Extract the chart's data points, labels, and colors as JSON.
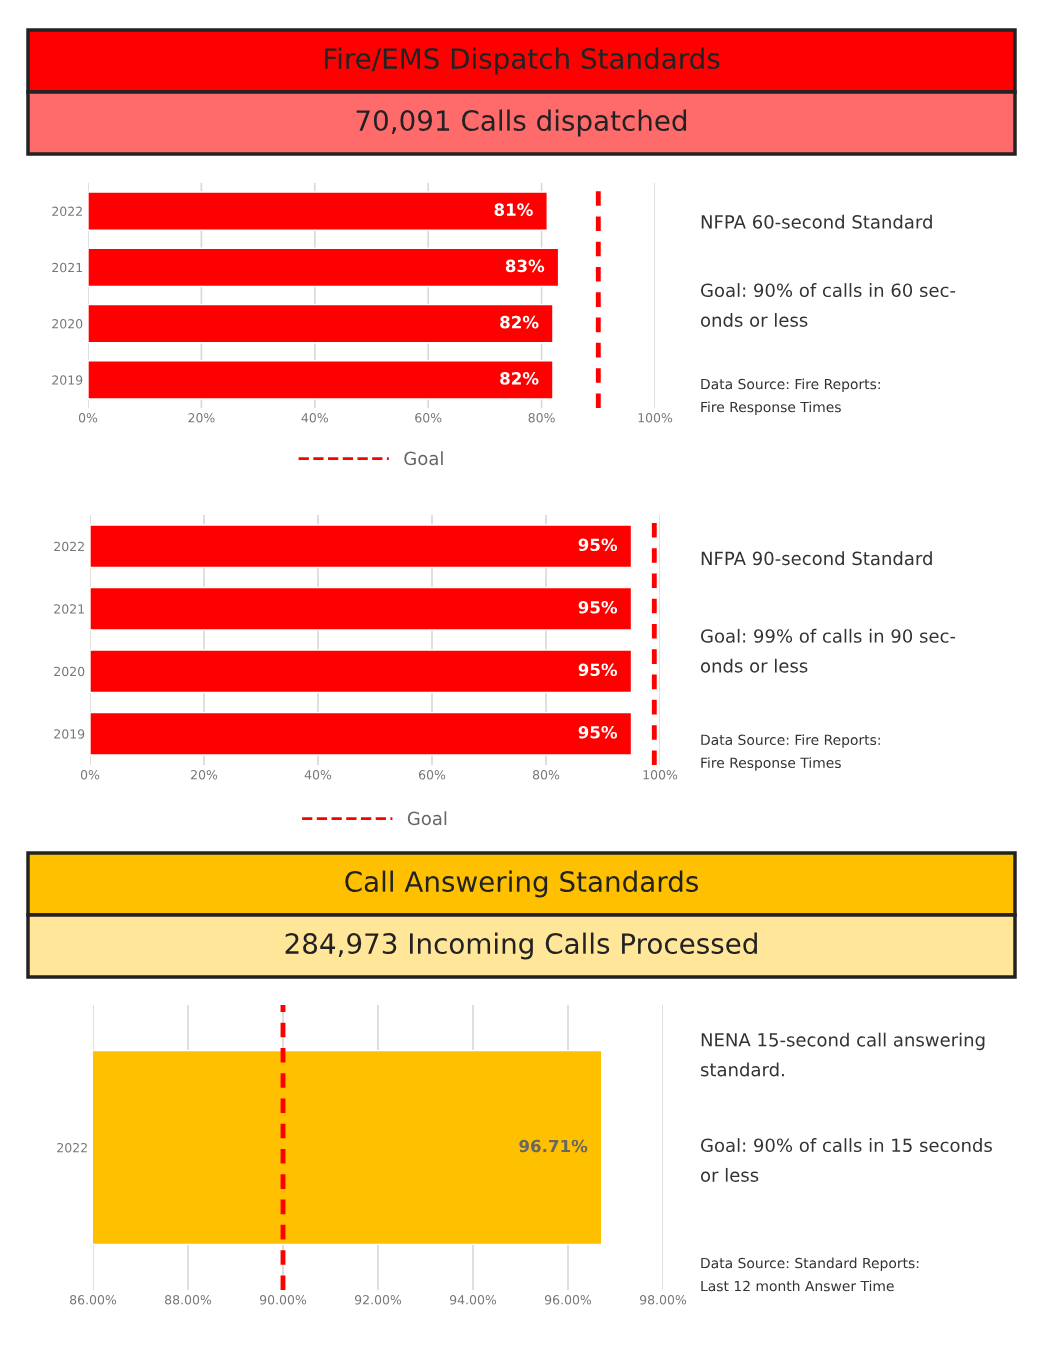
{
  "chart_data": [
    {
      "type": "bar",
      "orientation": "horizontal",
      "title": "Fire/EMS Dispatch Standards",
      "subtitle": "70,091 Calls dispatched",
      "categories": [
        "2022",
        "2021",
        "2020",
        "2019"
      ],
      "values": [
        81,
        83,
        82,
        82
      ],
      "value_labels": [
        "81%",
        "83%",
        "82%",
        "82%"
      ],
      "color": "#ff0000",
      "xlim": [
        0,
        100
      ],
      "xticks": [
        {
          "value": 0,
          "label": "0%"
        },
        {
          "value": 20,
          "label": "20%"
        },
        {
          "value": 40,
          "label": "40%"
        },
        {
          "value": 60,
          "label": "60%"
        },
        {
          "value": 80,
          "label": "80%"
        },
        {
          "value": 100,
          "label": "100%"
        }
      ],
      "ref_lines": [
        {
          "axis": "x",
          "value": 90,
          "label": "Goal",
          "color": "#ff0000",
          "line_style": "dashed"
        }
      ],
      "grid": "x",
      "legend": "bottom",
      "annotations": [
        "NFPA 60-second Standard",
        "Goal: 90% of calls in 60 sec-\nonds or less",
        "Data Source: Fire Reports:\nFire Response Times"
      ]
    },
    {
      "type": "bar",
      "orientation": "horizontal",
      "categories": [
        "2022",
        "2021",
        "2020",
        "2019"
      ],
      "values": [
        95,
        95,
        95,
        95
      ],
      "value_labels": [
        "95%",
        "95%",
        "95%",
        "95%"
      ],
      "color": "#ff0000",
      "xlim": [
        0,
        100
      ],
      "xticks": [
        {
          "value": 0,
          "label": "0%"
        },
        {
          "value": 20,
          "label": "20%"
        },
        {
          "value": 40,
          "label": "40%"
        },
        {
          "value": 60,
          "label": "60%"
        },
        {
          "value": 80,
          "label": "80%"
        },
        {
          "value": 100,
          "label": "100%"
        }
      ],
      "ref_lines": [
        {
          "axis": "x",
          "value": 99,
          "label": "Goal",
          "color": "#ff0000",
          "line_style": "dashed"
        }
      ],
      "grid": "x",
      "legend": "bottom",
      "annotations": [
        "NFPA 90-second Standard",
        "Goal: 99% of calls in 90 sec-\nonds or less",
        "Data Source: Fire Reports:\nFire Response Times"
      ]
    },
    {
      "type": "bar",
      "orientation": "horizontal",
      "title": "Call Answering Standards",
      "subtitle": "284,973 Incoming Calls Processed",
      "categories": [
        "2022"
      ],
      "values": [
        96.71
      ],
      "value_labels": [
        "96.71%"
      ],
      "color": "#ffc000",
      "xlim": [
        86,
        98
      ],
      "xticks": [
        {
          "value": 86,
          "label": "86.00%"
        },
        {
          "value": 88,
          "label": "88.00%"
        },
        {
          "value": 90,
          "label": "90.00%"
        },
        {
          "value": 92,
          "label": "92.00%"
        },
        {
          "value": 94,
          "label": "94.00%"
        },
        {
          "value": 96,
          "label": "96.00%"
        },
        {
          "value": 98,
          "label": "98.00%"
        }
      ],
      "ref_lines": [
        {
          "axis": "x",
          "value": 90,
          "color": "#ff0000",
          "line_style": "dashed"
        }
      ],
      "grid": "x",
      "annotations": [
        "NENA 15-second call answering\nstandard.",
        "Goal: 90% of calls in 15 seconds\nor less",
        "Data Source: Standard Reports:\nLast 12 month Answer Time"
      ]
    }
  ]
}
